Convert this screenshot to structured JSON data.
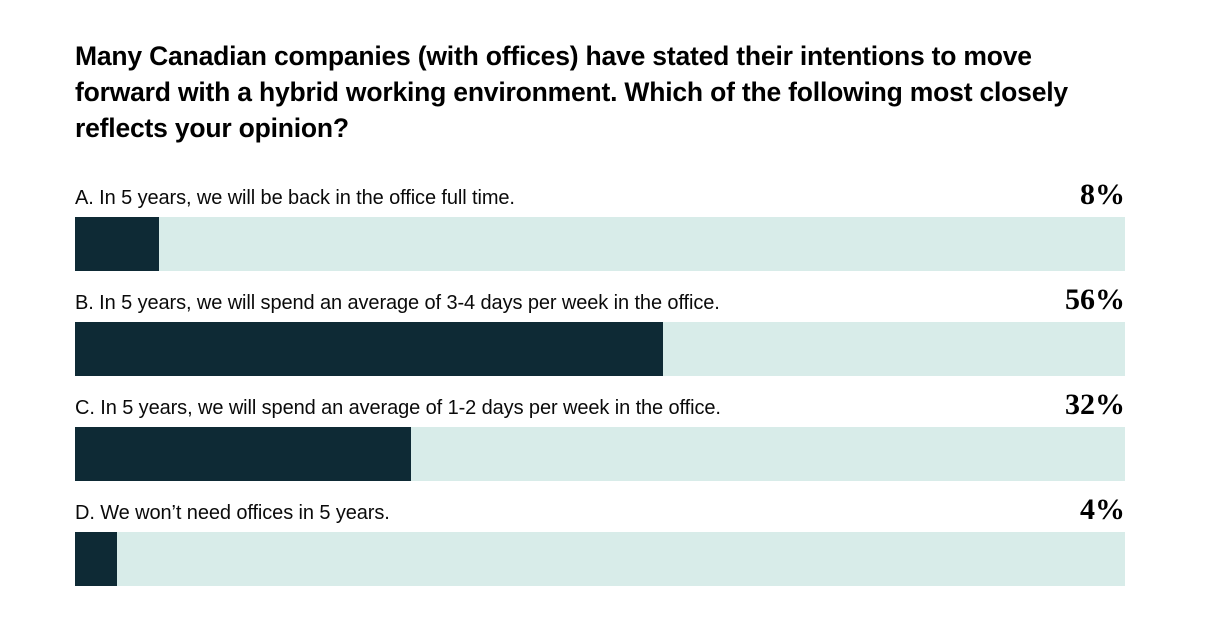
{
  "title": "Many Canadian companies (with offices) have stated their intentions to move forward with a hybrid working environment. Which of the following most closely reflects your opinion?",
  "colors": {
    "bar_fill": "#0e2a35",
    "bar_track": "#d8ece9",
    "text": "#000000",
    "background": "#ffffff"
  },
  "chart_data": {
    "type": "bar",
    "orientation": "horizontal",
    "title": "Many Canadian companies (with offices) have stated their intentions to move forward with a hybrid working environment. Which of the following most closely reflects your opinion?",
    "categories": [
      "A. In 5 years, we will be back in the office full time.",
      "B. In 5 years, we will spend an average of 3-4 days per week in the office.",
      "C. In 5 years, we will spend an average of 1-2 days per week in the office.",
      "D. We won’t need offices in 5 years."
    ],
    "values": [
      8,
      56,
      32,
      4
    ],
    "value_labels": [
      "8%",
      "56%",
      "32%",
      "4%"
    ],
    "xlim": [
      0,
      100
    ],
    "unit": "percent",
    "grid": false,
    "legend": false
  }
}
